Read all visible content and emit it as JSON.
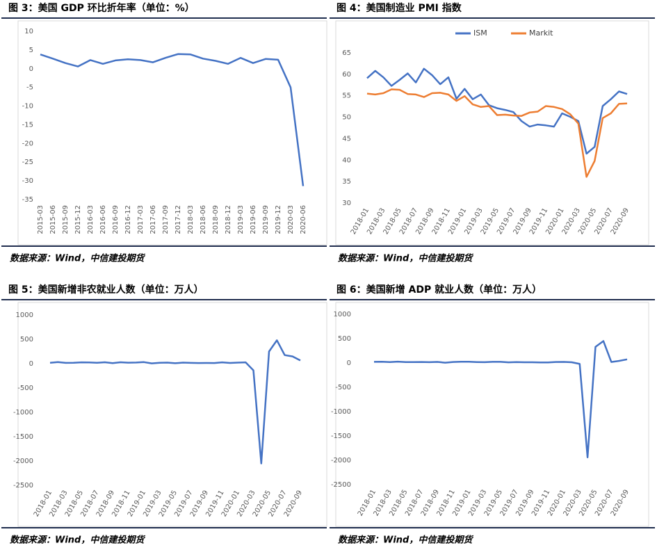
{
  "chart_data": [
    {
      "type": "line",
      "title": "图 3：美国 GDP 环比折年率（单位：%）",
      "source": "数据来源：Wind，中信建投期货",
      "categories": [
        "2015-03",
        "2015-06",
        "2015-09",
        "2015-12",
        "2016-03",
        "2016-06",
        "2016-09",
        "2016-12",
        "2017-03",
        "2017-06",
        "2017-09",
        "2017-12",
        "2018-03",
        "2018-06",
        "2018-09",
        "2018-12",
        "2019-03",
        "2019-06",
        "2019-09",
        "2019-12",
        "2020-03",
        "2020-06"
      ],
      "series": [
        {
          "name": null,
          "color": "#4472c4",
          "values": [
            3.8,
            2.7,
            1.5,
            0.6,
            2.3,
            1.3,
            2.2,
            2.5,
            2.3,
            1.7,
            2.9,
            3.9,
            3.8,
            2.7,
            2.1,
            1.3,
            2.9,
            1.5,
            2.6,
            2.4,
            -5.0,
            -31.4
          ]
        }
      ],
      "ylim": [
        -35,
        10
      ],
      "yticks": [
        -35,
        -30,
        -25,
        -20,
        -15,
        -10,
        -5,
        0,
        5,
        10
      ]
    },
    {
      "type": "line",
      "title": "图 4：美国制造业 PMI 指数",
      "source": "数据来源：Wind，中信建投期货",
      "categories": [
        "2018-01",
        null,
        "2018-03",
        null,
        "2018-05",
        null,
        "2018-07",
        null,
        "2018-09",
        null,
        "2018-11",
        null,
        "2019-01",
        null,
        "2019-03",
        null,
        "2019-05",
        null,
        "2019-07",
        null,
        "2019-09",
        null,
        "2019-11",
        null,
        "2020-01",
        null,
        "2020-03",
        null,
        "2020-05",
        null,
        "2020-07",
        null,
        "2020-09"
      ],
      "series": [
        {
          "name": "ISM",
          "color": "#4472c4",
          "values": [
            59.1,
            60.8,
            59.3,
            57.3,
            58.7,
            60.2,
            58.1,
            61.3,
            59.8,
            57.7,
            59.3,
            54.3,
            56.6,
            54.2,
            55.3,
            52.8,
            52.1,
            51.7,
            51.2,
            49.1,
            47.8,
            48.3,
            48.1,
            47.8,
            50.9,
            50.1,
            49.1,
            41.5,
            43.1,
            52.6,
            54.2,
            56.0,
            55.4
          ]
        },
        {
          "name": "Markit",
          "color": "#ed7d31",
          "values": [
            55.5,
            55.3,
            55.6,
            56.5,
            56.4,
            55.4,
            55.3,
            54.7,
            55.6,
            55.7,
            55.3,
            53.8,
            54.9,
            53.0,
            52.4,
            52.6,
            50.5,
            50.6,
            50.4,
            50.3,
            51.1,
            51.3,
            52.6,
            52.4,
            51.9,
            50.7,
            48.5,
            36.1,
            39.8,
            49.8,
            50.9,
            53.1,
            53.2
          ]
        }
      ],
      "ylim": [
        30,
        65
      ],
      "yticks": [
        30,
        35,
        40,
        45,
        50,
        55,
        60,
        65
      ],
      "legend": "top"
    },
    {
      "type": "line",
      "title": "图 5：美国新增非农就业人数（单位：万人）",
      "source": "数据来源：Wind，中信建投期货",
      "categories": [
        "2018-01",
        null,
        "2018-03",
        null,
        "2018-05",
        null,
        "2018-07",
        null,
        "2018-09",
        null,
        "2018-11",
        null,
        "2019-01",
        null,
        "2019-03",
        null,
        "2019-05",
        null,
        "2019-07",
        null,
        "2019-09",
        null,
        "2019-11",
        null,
        "2020-01",
        null,
        "2020-03",
        null,
        "2020-05",
        null,
        "2020-07",
        null,
        "2020-09"
      ],
      "series": [
        {
          "name": null,
          "color": "#4472c4",
          "values": [
            18,
            32,
            16,
            18,
            27,
            25,
            18,
            28,
            11,
            28,
            20,
            23,
            31,
            6,
            19,
            22,
            8,
            22,
            16,
            13,
            14,
            13,
            27,
            15,
            21,
            27,
            -137,
            -2050,
            250,
            480,
            176,
            149,
            66
          ]
        }
      ],
      "ylim": [
        -2500,
        1000
      ],
      "yticks": [
        -2500,
        -2000,
        -1500,
        -1000,
        -500,
        0,
        500,
        1000
      ]
    },
    {
      "type": "line",
      "title": "图 6：美国新增 ADP 就业人数（单位：万人）",
      "source": "数据来源：Wind，中信建投期货",
      "categories": [
        "2018-01",
        null,
        "2018-03",
        null,
        "2018-05",
        null,
        "2018-07",
        null,
        "2018-09",
        null,
        "2018-11",
        null,
        "2019-01",
        null,
        "2019-03",
        null,
        "2019-05",
        null,
        "2019-07",
        null,
        "2019-09",
        null,
        "2019-11",
        null,
        "2020-01",
        null,
        "2020-03",
        null,
        "2020-05",
        null,
        "2020-07",
        null,
        "2020-09"
      ],
      "series": [
        {
          "name": null,
          "color": "#4472c4",
          "values": [
            23,
            24,
            17,
            27,
            18,
            19,
            20,
            16,
            21,
            5,
            20,
            26,
            24,
            18,
            16,
            23,
            23,
            13,
            18,
            15,
            15,
            12,
            12,
            20,
            21,
            15,
            -20,
            -1940,
            330,
            450,
            20,
            43,
            75
          ]
        }
      ],
      "ylim": [
        -2500,
        1000
      ],
      "yticks": [
        -2500,
        -2000,
        -1500,
        -1000,
        -500,
        0,
        500,
        1000
      ]
    }
  ]
}
